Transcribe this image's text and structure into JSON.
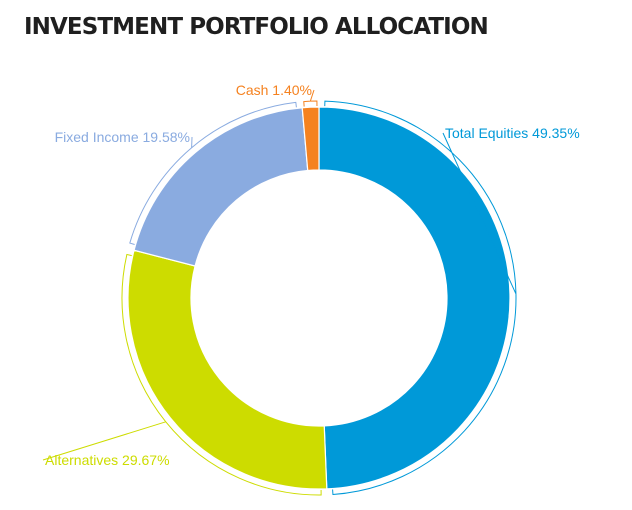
{
  "chart_data": {
    "type": "pie",
    "title": "INVESTMENT PORTFOLIO ALLOCATION",
    "donut": true,
    "categories": [
      "Total Equities",
      "Alternatives",
      "Fixed Income",
      "Cash"
    ],
    "values": [
      49.35,
      29.67,
      19.58,
      1.4
    ],
    "labels": [
      "Total Equities 49.35%",
      "Alternatives 29.67%",
      "Fixed Income 19.58%",
      "Cash 1.40%"
    ],
    "colors": [
      "#0099d8",
      "#cddc00",
      "#8aabe0",
      "#f58220"
    ],
    "legend": "none"
  }
}
